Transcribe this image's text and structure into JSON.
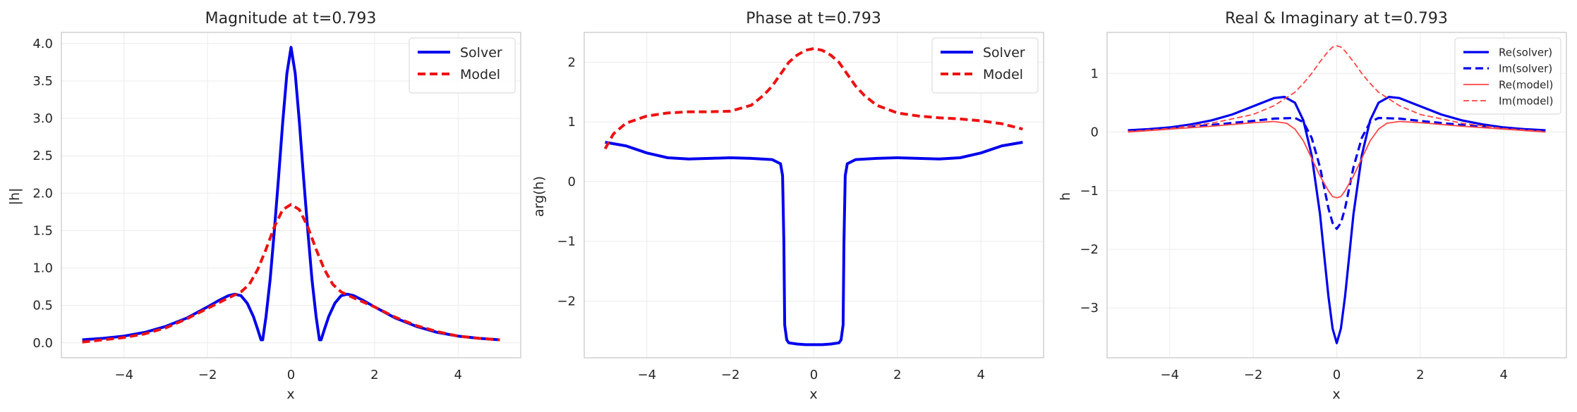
{
  "chart_data": [
    {
      "type": "line",
      "title": "Magnitude at t=0.793",
      "xlabel": "x",
      "ylabel": "|h|",
      "xlim": [
        -5.5,
        5.5
      ],
      "ylim": [
        -0.2,
        4.15
      ],
      "xticks": [
        -4,
        -2,
        0,
        2,
        4
      ],
      "yticks": [
        0.0,
        0.5,
        1.0,
        1.5,
        2.0,
        2.5,
        3.0,
        3.5,
        4.0
      ],
      "ytick_labels": [
        "0.0",
        "0.5",
        "1.0",
        "1.5",
        "2.0",
        "2.5",
        "3.0",
        "3.5",
        "4.0"
      ],
      "grid": true,
      "legend_position": "top-right",
      "series": [
        {
          "name": "Solver",
          "color": "#0000ee",
          "dash": "solid",
          "x": [
            -5,
            -4.5,
            -4,
            -3.5,
            -3,
            -2.5,
            -2,
            -1.75,
            -1.5,
            -1.35,
            -1.2,
            -1.05,
            -0.9,
            -0.8,
            -0.72,
            -0.68,
            -0.6,
            -0.5,
            -0.4,
            -0.3,
            -0.2,
            -0.1,
            0,
            0.1,
            0.2,
            0.3,
            0.4,
            0.5,
            0.6,
            0.68,
            0.72,
            0.8,
            0.9,
            1.05,
            1.2,
            1.35,
            1.5,
            1.75,
            2,
            2.5,
            3,
            3.5,
            4,
            4.5,
            5
          ],
          "y": [
            0.04,
            0.06,
            0.09,
            0.14,
            0.22,
            0.33,
            0.48,
            0.56,
            0.63,
            0.65,
            0.63,
            0.53,
            0.35,
            0.18,
            0.04,
            0.04,
            0.35,
            0.85,
            1.5,
            2.2,
            2.95,
            3.6,
            3.95,
            3.6,
            2.95,
            2.2,
            1.5,
            0.85,
            0.35,
            0.04,
            0.04,
            0.18,
            0.35,
            0.53,
            0.63,
            0.65,
            0.63,
            0.56,
            0.48,
            0.33,
            0.22,
            0.14,
            0.09,
            0.06,
            0.04
          ]
        },
        {
          "name": "Model",
          "color": "#ee1111",
          "dash": "dashed",
          "x": [
            -5,
            -4.5,
            -4,
            -3.5,
            -3,
            -2.5,
            -2,
            -1.5,
            -1.2,
            -1,
            -0.8,
            -0.6,
            -0.4,
            -0.2,
            0,
            0.2,
            0.4,
            0.6,
            0.8,
            1,
            1.2,
            1.5,
            2,
            2.5,
            3,
            3.5,
            4,
            4.5,
            5
          ],
          "y": [
            0.01,
            0.04,
            0.07,
            0.12,
            0.2,
            0.32,
            0.46,
            0.6,
            0.68,
            0.78,
            0.98,
            1.25,
            1.55,
            1.78,
            1.85,
            1.78,
            1.55,
            1.25,
            0.98,
            0.78,
            0.68,
            0.6,
            0.48,
            0.34,
            0.23,
            0.15,
            0.09,
            0.06,
            0.04
          ]
        }
      ]
    },
    {
      "type": "line",
      "title": "Phase at t=0.793",
      "xlabel": "x",
      "ylabel": "arg(h)",
      "xlim": [
        -5.5,
        5.5
      ],
      "ylim": [
        -2.95,
        2.5
      ],
      "xticks": [
        -4,
        -2,
        0,
        2,
        4
      ],
      "yticks": [
        -2,
        -1,
        0,
        1,
        2
      ],
      "ytick_labels": [
        "−2",
        "−1",
        "0",
        "1",
        "2"
      ],
      "grid": true,
      "legend_position": "top-right",
      "series": [
        {
          "name": "Solver",
          "color": "#0000ee",
          "dash": "solid",
          "x": [
            -5,
            -4.5,
            -4,
            -3.5,
            -3,
            -2.5,
            -2,
            -1.5,
            -1,
            -0.8,
            -0.75,
            -0.72,
            -0.7,
            -0.65,
            -0.6,
            -0.4,
            -0.2,
            0,
            0.2,
            0.4,
            0.6,
            0.65,
            0.7,
            0.72,
            0.75,
            0.8,
            1,
            1.5,
            2,
            2.5,
            3,
            3.5,
            4,
            4.5,
            5
          ],
          "y": [
            0.66,
            0.6,
            0.48,
            0.4,
            0.38,
            0.39,
            0.4,
            0.39,
            0.37,
            0.3,
            0.1,
            -1.0,
            -2.4,
            -2.65,
            -2.7,
            -2.72,
            -2.73,
            -2.73,
            -2.73,
            -2.72,
            -2.7,
            -2.65,
            -2.4,
            -1.0,
            0.1,
            0.3,
            0.37,
            0.39,
            0.4,
            0.39,
            0.38,
            0.4,
            0.48,
            0.6,
            0.66
          ]
        },
        {
          "name": "Model",
          "color": "#ee1111",
          "dash": "dashed",
          "x": [
            -5,
            -4.8,
            -4.5,
            -4,
            -3.5,
            -3,
            -2.5,
            -2,
            -1.5,
            -1.2,
            -1,
            -0.8,
            -0.6,
            -0.4,
            -0.2,
            0,
            0.2,
            0.4,
            0.6,
            0.8,
            1,
            1.2,
            1.5,
            2,
            2.5,
            3,
            3.5,
            4,
            4.5,
            5
          ],
          "y": [
            0.55,
            0.8,
            0.98,
            1.1,
            1.15,
            1.17,
            1.17,
            1.18,
            1.28,
            1.45,
            1.6,
            1.8,
            2.0,
            2.12,
            2.2,
            2.23,
            2.2,
            2.12,
            2.0,
            1.8,
            1.6,
            1.45,
            1.28,
            1.15,
            1.1,
            1.07,
            1.05,
            1.02,
            0.97,
            0.88
          ]
        }
      ]
    },
    {
      "type": "line",
      "title": "Real & Imaginary at t=0.793",
      "xlabel": "x",
      "ylabel": "h",
      "xlim": [
        -5.5,
        5.5
      ],
      "ylim": [
        -3.85,
        1.7
      ],
      "xticks": [
        -4,
        -2,
        0,
        2,
        4
      ],
      "yticks": [
        -3,
        -2,
        -1,
        0,
        1
      ],
      "ytick_labels": [
        "−3",
        "−2",
        "−1",
        "0",
        "1"
      ],
      "grid": true,
      "legend_position": "top-right",
      "series": [
        {
          "name": "Re(solver)",
          "color": "#0000ee",
          "dash": "solid",
          "width": 3.2,
          "x": [
            -5,
            -4.5,
            -4,
            -3.5,
            -3,
            -2.5,
            -2,
            -1.5,
            -1.25,
            -1,
            -0.8,
            -0.6,
            -0.4,
            -0.3,
            -0.2,
            -0.1,
            0,
            0.1,
            0.2,
            0.3,
            0.4,
            0.6,
            0.8,
            1,
            1.25,
            1.5,
            2,
            2.5,
            3,
            3.5,
            4,
            4.5,
            5
          ],
          "y": [
            0.03,
            0.05,
            0.08,
            0.13,
            0.2,
            0.3,
            0.44,
            0.58,
            0.6,
            0.5,
            0.2,
            -0.4,
            -1.4,
            -2.1,
            -2.8,
            -3.35,
            -3.6,
            -3.35,
            -2.8,
            -2.1,
            -1.4,
            -0.4,
            0.2,
            0.5,
            0.6,
            0.58,
            0.44,
            0.3,
            0.2,
            0.13,
            0.08,
            0.05,
            0.03
          ]
        },
        {
          "name": "Im(solver)",
          "color": "#0000ee",
          "dash": "dashed",
          "width": 3.2,
          "x": [
            -5,
            -4,
            -3,
            -2,
            -1.5,
            -1,
            -0.8,
            -0.6,
            -0.4,
            -0.2,
            -0.1,
            0,
            0.1,
            0.2,
            0.4,
            0.6,
            0.8,
            1,
            1.5,
            2,
            3,
            4,
            5
          ],
          "y": [
            0.02,
            0.06,
            0.12,
            0.19,
            0.23,
            0.24,
            0.17,
            -0.1,
            -0.6,
            -1.3,
            -1.55,
            -1.65,
            -1.55,
            -1.3,
            -0.6,
            -0.1,
            0.17,
            0.24,
            0.23,
            0.19,
            0.12,
            0.06,
            0.02
          ]
        },
        {
          "name": "Re(model)",
          "color": "#ff4444",
          "dash": "solid",
          "width": 1.8,
          "x": [
            -5,
            -4,
            -3,
            -2,
            -1.5,
            -1.2,
            -1,
            -0.8,
            -0.6,
            -0.4,
            -0.2,
            -0.1,
            0,
            0.1,
            0.2,
            0.4,
            0.6,
            0.8,
            1,
            1.2,
            1.5,
            2,
            3,
            4,
            5
          ],
          "y": [
            0.0,
            0.05,
            0.1,
            0.16,
            0.18,
            0.15,
            0.05,
            -0.15,
            -0.45,
            -0.75,
            -1.0,
            -1.1,
            -1.12,
            -1.1,
            -1.0,
            -0.75,
            -0.45,
            -0.15,
            0.05,
            0.15,
            0.18,
            0.16,
            0.1,
            0.05,
            0.0
          ]
        },
        {
          "name": "Im(model)",
          "color": "#ff4444",
          "dash": "dashed",
          "width": 1.8,
          "x": [
            -5,
            -4,
            -3,
            -2,
            -1.5,
            -1,
            -0.8,
            -0.6,
            -0.4,
            -0.2,
            -0.1,
            0,
            0.1,
            0.2,
            0.4,
            0.6,
            0.8,
            1,
            1.5,
            2,
            3,
            4,
            5
          ],
          "y": [
            0.01,
            0.06,
            0.15,
            0.3,
            0.45,
            0.68,
            0.83,
            1.0,
            1.2,
            1.38,
            1.45,
            1.47,
            1.45,
            1.38,
            1.2,
            1.0,
            0.83,
            0.68,
            0.45,
            0.3,
            0.15,
            0.06,
            0.01
          ]
        }
      ]
    }
  ]
}
